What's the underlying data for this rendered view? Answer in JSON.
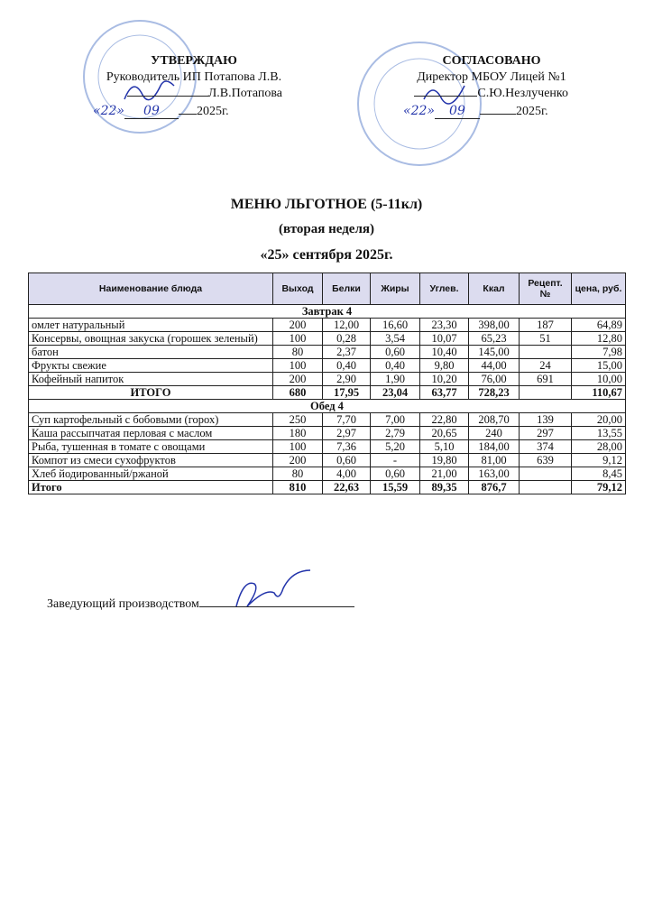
{
  "approve_left": {
    "title": "УТВЕРЖДАЮ",
    "line1": "Руководитель ИП Потапова Л.В.",
    "line2": "Л.В.Потапова",
    "day": "«22»",
    "month": "09",
    "year": "2025г."
  },
  "approve_right": {
    "title": "СОГЛАСОВАНО",
    "line1": "Директор МБОУ Лицей №1",
    "line2": "С.Ю.Незлученко",
    "day": "«22»",
    "month": "09",
    "year": "2025г."
  },
  "heading": {
    "title": "МЕНЮ ЛЬГОТНОЕ (5-11кл)",
    "week": "(вторая неделя)",
    "date": "«25» сентября 2025г."
  },
  "table": {
    "header": [
      "Наименование блюда",
      "Выход",
      "Белки",
      "Жиры",
      "Углев.",
      "Ккал",
      "Рецепт. №",
      "цена, руб."
    ],
    "sections": [
      {
        "title": "Завтрак 4",
        "rows": [
          [
            "омлет натуральный",
            "200",
            "12,00",
            "16,60",
            "23,30",
            "398,00",
            "187",
            "64,89"
          ],
          [
            "Консервы, овощная закуска (горошек зеленый)",
            "100",
            "0,28",
            "3,54",
            "10,07",
            "65,23",
            "51",
            "12,80"
          ],
          [
            "батон",
            "80",
            "2,37",
            "0,60",
            "10,40",
            "145,00",
            null,
            "7,98"
          ],
          [
            "Фрукты свежие",
            "100",
            "0,40",
            "0,40",
            "9,80",
            "44,00",
            "24",
            "15,00"
          ],
          [
            "Кофейный напиток",
            "200",
            "2,90",
            "1,90",
            "10,20",
            "76,00",
            "691",
            "10,00"
          ]
        ],
        "total": [
          "ИТОГО",
          "680",
          "17,95",
          "23,04",
          "63,77",
          "728,23",
          null,
          "110,67"
        ]
      },
      {
        "title": "Обед 4",
        "rows": [
          [
            "Суп картофельный с бобовыми (горох)",
            "250",
            "7,70",
            "7,00",
            "22,80",
            "208,70",
            "139",
            "20,00"
          ],
          [
            "Каша рассыпчатая перловая с маслом",
            "180",
            "2,97",
            "2,79",
            "20,65",
            "240",
            "297",
            "13,55"
          ],
          [
            "Рыба, тушенная в томате с овощами",
            "100",
            "7,36",
            "5,20",
            "5,10",
            "184,00",
            "374",
            "28,00"
          ],
          [
            "Компот из смеси сухофруктов",
            "200",
            "0,60",
            "-",
            "19,80",
            "81,00",
            "639",
            "9,12"
          ],
          [
            "Хлеб йодированный/ржаной",
            "80",
            "4,00",
            "0,60",
            "21,00",
            "163,00",
            null,
            "8,45"
          ]
        ],
        "total": [
          "Итого",
          "810",
          "22,63",
          "15,59",
          "89,35",
          "876,7",
          null,
          "79,12"
        ]
      }
    ]
  },
  "footer": {
    "signer": "Заведующий производством"
  }
}
